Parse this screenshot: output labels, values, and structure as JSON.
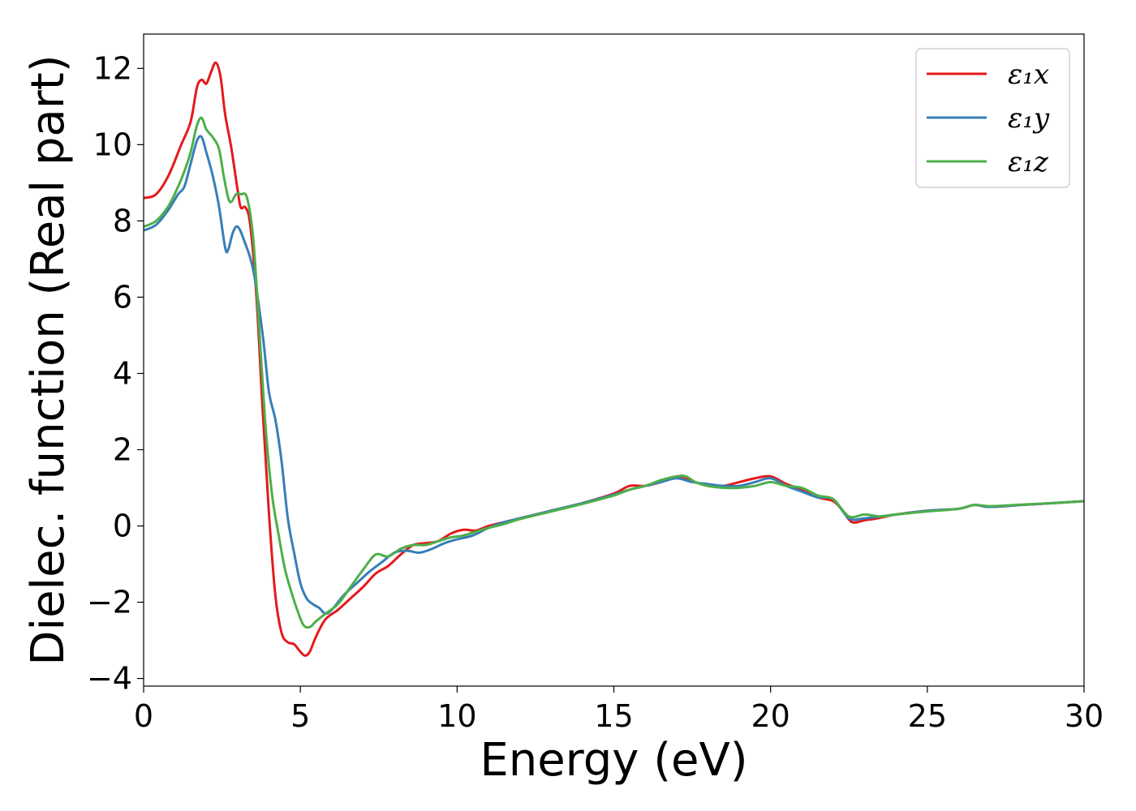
{
  "chart_data": {
    "type": "line",
    "title": "",
    "xlabel": "Energy (eV)",
    "ylabel": "Dielec. function (Real part)",
    "xlim": [
      0,
      30
    ],
    "ylim": [
      -4.2,
      12.9
    ],
    "xticks": [
      0,
      5,
      10,
      15,
      20,
      25,
      30
    ],
    "yticks": [
      -4,
      -2,
      0,
      2,
      4,
      6,
      8,
      10,
      12
    ],
    "xtick_labels": [
      "0",
      "5",
      "10",
      "15",
      "20",
      "25",
      "30"
    ],
    "ytick_labels": [
      "−4",
      "−2",
      "0",
      "2",
      "4",
      "6",
      "8",
      "10",
      "12"
    ],
    "grid": false,
    "legend_position": "top-right",
    "series": [
      {
        "name": "ε₁x",
        "color": "#e41a1c",
        "points": [
          [
            0,
            8.6
          ],
          [
            0.4,
            8.7
          ],
          [
            0.8,
            9.2
          ],
          [
            1.2,
            10.0
          ],
          [
            1.5,
            10.6
          ],
          [
            1.7,
            11.5
          ],
          [
            1.85,
            11.7
          ],
          [
            2.0,
            11.6
          ],
          [
            2.15,
            11.9
          ],
          [
            2.3,
            12.15
          ],
          [
            2.45,
            11.8
          ],
          [
            2.6,
            10.8
          ],
          [
            2.8,
            9.9
          ],
          [
            3.0,
            8.8
          ],
          [
            3.1,
            8.35
          ],
          [
            3.25,
            8.35
          ],
          [
            3.4,
            7.9
          ],
          [
            3.6,
            6.0
          ],
          [
            3.8,
            3.0
          ],
          [
            4.0,
            0.3
          ],
          [
            4.2,
            -1.8
          ],
          [
            4.4,
            -2.8
          ],
          [
            4.6,
            -3.05
          ],
          [
            4.8,
            -3.1
          ],
          [
            5.0,
            -3.3
          ],
          [
            5.15,
            -3.4
          ],
          [
            5.3,
            -3.3
          ],
          [
            5.5,
            -2.9
          ],
          [
            5.8,
            -2.45
          ],
          [
            6.2,
            -2.2
          ],
          [
            6.6,
            -1.9
          ],
          [
            7.0,
            -1.6
          ],
          [
            7.4,
            -1.25
          ],
          [
            7.8,
            -1.05
          ],
          [
            8.2,
            -0.75
          ],
          [
            8.6,
            -0.5
          ],
          [
            9.0,
            -0.45
          ],
          [
            9.4,
            -0.4
          ],
          [
            9.8,
            -0.2
          ],
          [
            10.2,
            -0.1
          ],
          [
            10.6,
            -0.12
          ],
          [
            11.0,
            0.0
          ],
          [
            11.5,
            0.1
          ],
          [
            12.0,
            0.2
          ],
          [
            13.0,
            0.4
          ],
          [
            14.0,
            0.6
          ],
          [
            15.0,
            0.85
          ],
          [
            15.5,
            1.05
          ],
          [
            16.0,
            1.05
          ],
          [
            16.5,
            1.15
          ],
          [
            16.8,
            1.25
          ],
          [
            17.2,
            1.25
          ],
          [
            17.6,
            1.15
          ],
          [
            18.0,
            1.05
          ],
          [
            18.5,
            1.05
          ],
          [
            19.0,
            1.15
          ],
          [
            19.5,
            1.25
          ],
          [
            20.0,
            1.3
          ],
          [
            20.5,
            1.1
          ],
          [
            21.0,
            0.95
          ],
          [
            21.5,
            0.75
          ],
          [
            22.0,
            0.65
          ],
          [
            22.3,
            0.4
          ],
          [
            22.6,
            0.1
          ],
          [
            23.0,
            0.15
          ],
          [
            23.4,
            0.2
          ],
          [
            24.0,
            0.3
          ],
          [
            25.0,
            0.4
          ],
          [
            26.0,
            0.45
          ],
          [
            26.5,
            0.55
          ],
          [
            27.0,
            0.5
          ],
          [
            28.0,
            0.55
          ],
          [
            29.0,
            0.6
          ],
          [
            30.0,
            0.65
          ]
        ]
      },
      {
        "name": "ε₁y",
        "color": "#377eb8",
        "points": [
          [
            0,
            7.75
          ],
          [
            0.4,
            7.9
          ],
          [
            0.8,
            8.3
          ],
          [
            1.1,
            8.7
          ],
          [
            1.3,
            8.9
          ],
          [
            1.5,
            9.5
          ],
          [
            1.7,
            10.1
          ],
          [
            1.85,
            10.2
          ],
          [
            2.0,
            9.8
          ],
          [
            2.2,
            9.2
          ],
          [
            2.4,
            8.4
          ],
          [
            2.6,
            7.3
          ],
          [
            2.7,
            7.25
          ],
          [
            2.85,
            7.7
          ],
          [
            3.0,
            7.85
          ],
          [
            3.2,
            7.5
          ],
          [
            3.5,
            6.7
          ],
          [
            3.8,
            5.0
          ],
          [
            4.0,
            3.5
          ],
          [
            4.2,
            2.8
          ],
          [
            4.4,
            1.7
          ],
          [
            4.6,
            0.2
          ],
          [
            4.8,
            -0.7
          ],
          [
            5.0,
            -1.5
          ],
          [
            5.2,
            -1.9
          ],
          [
            5.4,
            -2.05
          ],
          [
            5.6,
            -2.15
          ],
          [
            5.8,
            -2.3
          ],
          [
            6.0,
            -2.2
          ],
          [
            6.4,
            -1.8
          ],
          [
            6.8,
            -1.5
          ],
          [
            7.2,
            -1.2
          ],
          [
            7.6,
            -0.95
          ],
          [
            8.0,
            -0.7
          ],
          [
            8.4,
            -0.65
          ],
          [
            8.8,
            -0.7
          ],
          [
            9.2,
            -0.6
          ],
          [
            9.6,
            -0.45
          ],
          [
            10.0,
            -0.35
          ],
          [
            10.5,
            -0.25
          ],
          [
            11.0,
            -0.05
          ],
          [
            11.5,
            0.1
          ],
          [
            12.0,
            0.2
          ],
          [
            13.0,
            0.4
          ],
          [
            14.0,
            0.6
          ],
          [
            15.0,
            0.82
          ],
          [
            15.5,
            0.95
          ],
          [
            16.0,
            1.05
          ],
          [
            16.5,
            1.15
          ],
          [
            17.0,
            1.25
          ],
          [
            17.5,
            1.15
          ],
          [
            18.0,
            1.1
          ],
          [
            18.5,
            1.05
          ],
          [
            19.0,
            1.05
          ],
          [
            19.5,
            1.15
          ],
          [
            20.0,
            1.25
          ],
          [
            20.5,
            1.05
          ],
          [
            21.0,
            0.9
          ],
          [
            21.5,
            0.75
          ],
          [
            22.0,
            0.7
          ],
          [
            22.5,
            0.2
          ],
          [
            23.0,
            0.2
          ],
          [
            23.5,
            0.25
          ],
          [
            24.0,
            0.3
          ],
          [
            25.0,
            0.4
          ],
          [
            26.0,
            0.45
          ],
          [
            26.5,
            0.55
          ],
          [
            27.0,
            0.5
          ],
          [
            28.0,
            0.55
          ],
          [
            29.0,
            0.6
          ],
          [
            30.0,
            0.65
          ]
        ]
      },
      {
        "name": "ε₁z",
        "color": "#4daf4a",
        "points": [
          [
            0,
            7.85
          ],
          [
            0.4,
            8.0
          ],
          [
            0.8,
            8.4
          ],
          [
            1.1,
            8.9
          ],
          [
            1.3,
            9.3
          ],
          [
            1.5,
            9.8
          ],
          [
            1.7,
            10.5
          ],
          [
            1.85,
            10.7
          ],
          [
            2.0,
            10.4
          ],
          [
            2.2,
            10.2
          ],
          [
            2.4,
            9.9
          ],
          [
            2.55,
            9.2
          ],
          [
            2.7,
            8.6
          ],
          [
            2.8,
            8.5
          ],
          [
            2.95,
            8.7
          ],
          [
            3.1,
            8.7
          ],
          [
            3.3,
            8.6
          ],
          [
            3.5,
            7.5
          ],
          [
            3.7,
            5.0
          ],
          [
            3.9,
            2.5
          ],
          [
            4.1,
            0.8
          ],
          [
            4.3,
            -0.2
          ],
          [
            4.5,
            -1.1
          ],
          [
            4.7,
            -1.7
          ],
          [
            4.9,
            -2.2
          ],
          [
            5.1,
            -2.6
          ],
          [
            5.3,
            -2.65
          ],
          [
            5.5,
            -2.5
          ],
          [
            5.8,
            -2.3
          ],
          [
            6.2,
            -2.05
          ],
          [
            6.6,
            -1.6
          ],
          [
            7.0,
            -1.15
          ],
          [
            7.4,
            -0.75
          ],
          [
            7.8,
            -0.8
          ],
          [
            8.2,
            -0.6
          ],
          [
            8.6,
            -0.5
          ],
          [
            9.0,
            -0.5
          ],
          [
            9.4,
            -0.4
          ],
          [
            9.8,
            -0.3
          ],
          [
            10.2,
            -0.25
          ],
          [
            10.6,
            -0.15
          ],
          [
            11.0,
            -0.05
          ],
          [
            11.5,
            0.05
          ],
          [
            12.0,
            0.18
          ],
          [
            13.0,
            0.38
          ],
          [
            14.0,
            0.58
          ],
          [
            15.0,
            0.8
          ],
          [
            15.5,
            0.95
          ],
          [
            16.0,
            1.05
          ],
          [
            16.5,
            1.2
          ],
          [
            17.0,
            1.3
          ],
          [
            17.3,
            1.3
          ],
          [
            17.6,
            1.15
          ],
          [
            18.0,
            1.05
          ],
          [
            18.5,
            1.0
          ],
          [
            19.0,
            1.0
          ],
          [
            19.5,
            1.05
          ],
          [
            20.0,
            1.15
          ],
          [
            20.5,
            1.05
          ],
          [
            21.0,
            1.0
          ],
          [
            21.5,
            0.8
          ],
          [
            22.0,
            0.7
          ],
          [
            22.5,
            0.25
          ],
          [
            23.0,
            0.3
          ],
          [
            23.5,
            0.25
          ],
          [
            24.0,
            0.3
          ],
          [
            25.0,
            0.38
          ],
          [
            26.0,
            0.45
          ],
          [
            26.5,
            0.55
          ],
          [
            27.0,
            0.52
          ],
          [
            28.0,
            0.56
          ],
          [
            29.0,
            0.6
          ],
          [
            30.0,
            0.65
          ]
        ]
      }
    ]
  }
}
